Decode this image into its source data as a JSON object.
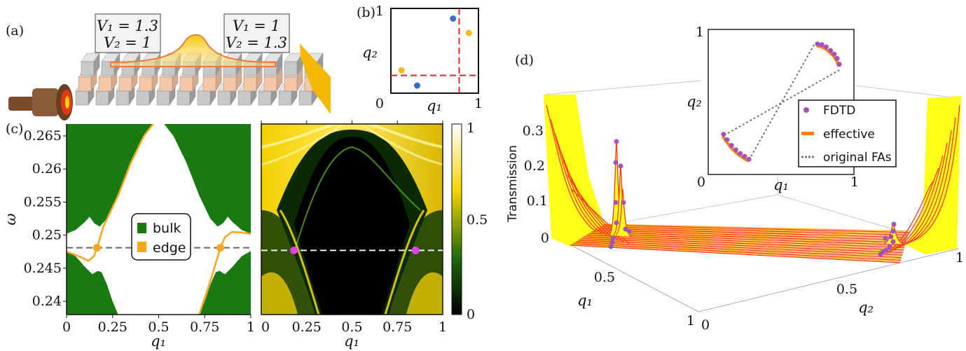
{
  "panel_labels": {
    "a": "(a)",
    "b": "(b)",
    "c": "(c)",
    "d": "(d)"
  },
  "panel_a": {
    "box_left": {
      "line1": "V₁ = 1.3",
      "line2": "V₂ = 1"
    },
    "box_right": {
      "line1": "V₁ = 1",
      "line2": "V₂ = 1.3"
    },
    "colors": {
      "rod": "#c8c8c8",
      "rod_mid": "#f5c7a9",
      "beam": "#f7c600",
      "beam_edge": "#f07a3a"
    }
  },
  "chart_data": [
    {
      "panel": "(b)",
      "type": "scatter",
      "xlabel": "q₁",
      "ylabel": "q₂",
      "xlim": [
        0,
        1
      ],
      "ylim": [
        0,
        1
      ],
      "xticks": [
        "0",
        "1"
      ],
      "yticks": [
        "0",
        "1"
      ],
      "series": [
        {
          "color": "#3a6cc8",
          "points": [
            [
              0.71,
              0.88
            ],
            [
              0.3,
              0.09
            ]
          ]
        },
        {
          "color": "#f5b91c",
          "points": [
            [
              0.89,
              0.71
            ],
            [
              0.12,
              0.27
            ]
          ]
        }
      ],
      "reference_lines": {
        "color": "#e8202a",
        "q1": 0.78,
        "q2": 0.21
      }
    },
    {
      "panel": "(c) left",
      "type": "area",
      "xlabel": "q₁",
      "ylabel": "ω",
      "xlim": [
        0,
        1
      ],
      "ylim": [
        0.238,
        0.2668
      ],
      "xticks": [
        "0",
        "0.25",
        "0.5",
        "0.75",
        "1"
      ],
      "yticks": [
        "0.24",
        "0.245",
        "0.25",
        "0.255",
        "0.26",
        "0.265"
      ],
      "legend": {
        "position": "center",
        "entries": [
          {
            "name": "bulk",
            "color": "#1a7a12"
          },
          {
            "name": "edge",
            "color": "#f9a41c"
          }
        ]
      },
      "bulk_upper_boundary": [
        [
          0,
          0.2502
        ],
        [
          0.05,
          0.2508
        ],
        [
          0.1,
          0.252
        ],
        [
          0.125,
          0.2528
        ],
        [
          0.15,
          0.2518
        ],
        [
          0.18,
          0.2513
        ],
        [
          0.22,
          0.2525
        ],
        [
          0.28,
          0.256
        ],
        [
          0.35,
          0.261
        ],
        [
          0.42,
          0.265
        ],
        [
          0.47,
          0.2668
        ],
        [
          0.53,
          0.2668
        ],
        [
          0.58,
          0.265
        ],
        [
          0.65,
          0.261
        ],
        [
          0.72,
          0.256
        ],
        [
          0.78,
          0.2525
        ],
        [
          0.82,
          0.2513
        ],
        [
          0.85,
          0.2518
        ],
        [
          0.875,
          0.2528
        ],
        [
          0.9,
          0.252
        ],
        [
          0.95,
          0.2508
        ],
        [
          1,
          0.2502
        ]
      ],
      "bulk_lower_left_boundary": [
        [
          0,
          0.2476
        ],
        [
          0.05,
          0.2468
        ],
        [
          0.1,
          0.2452
        ],
        [
          0.14,
          0.2441
        ],
        [
          0.17,
          0.2446
        ],
        [
          0.19,
          0.2444
        ],
        [
          0.22,
          0.2425
        ],
        [
          0.25,
          0.24
        ],
        [
          0.28,
          0.238
        ]
      ],
      "bulk_lower_right_boundary": [
        [
          0.72,
          0.238
        ],
        [
          0.75,
          0.24
        ],
        [
          0.78,
          0.2425
        ],
        [
          0.81,
          0.2444
        ],
        [
          0.83,
          0.2446
        ],
        [
          0.86,
          0.2441
        ],
        [
          0.9,
          0.2452
        ],
        [
          0.95,
          0.2468
        ],
        [
          1,
          0.2476
        ]
      ],
      "edge_left": [
        [
          0,
          0.2475
        ],
        [
          0.06,
          0.2469
        ],
        [
          0.12,
          0.2461
        ],
        [
          0.15,
          0.2469
        ],
        [
          0.165,
          0.2481
        ],
        [
          0.2,
          0.2513
        ],
        [
          0.28,
          0.256
        ],
        [
          0.35,
          0.261
        ],
        [
          0.42,
          0.265
        ],
        [
          0.47,
          0.2668
        ]
      ],
      "edge_right": [
        [
          0.72,
          0.238
        ],
        [
          0.78,
          0.243
        ],
        [
          0.835,
          0.2481
        ],
        [
          0.86,
          0.2497
        ],
        [
          0.9,
          0.2505
        ],
        [
          0.95,
          0.2504
        ],
        [
          1,
          0.2502
        ]
      ],
      "markers": [
        [
          0.165,
          0.2481
        ],
        [
          0.835,
          0.2481
        ]
      ],
      "dashed_line_omega": 0.2481
    },
    {
      "panel": "(c) right",
      "type": "heatmap",
      "xlabel": "q₁",
      "xlim": [
        0,
        1
      ],
      "ylim": [
        0.238,
        0.2668
      ],
      "xticks": [
        "0",
        "0.25",
        "0.5",
        "0.75",
        "1"
      ],
      "colorbar": {
        "range": [
          0,
          1
        ],
        "ticks": [
          "0",
          "0.5",
          "1"
        ],
        "colors": [
          "#000000",
          "#1f6b0a",
          "#f5d400",
          "#ffffff"
        ]
      },
      "markers": [
        [
          0.18,
          0.2477
        ],
        [
          0.85,
          0.2477
        ]
      ],
      "marker_color": "#e040e8",
      "dashed_line_omega": 0.2477
    },
    {
      "panel": "(d)",
      "type": "line",
      "zlabel": "Transmission",
      "xlabel": "q₁",
      "ylabel": "q₂",
      "zticks": [
        "0",
        "0.1",
        "0.2",
        "0.3"
      ],
      "xticks": [
        "0.5",
        "1"
      ],
      "yticks": [
        "0",
        "0.5",
        "1"
      ],
      "colors": {
        "surface": "#ffff1a",
        "lines": "#ff3a1a",
        "fdtd": "#a352b8"
      }
    },
    {
      "panel": "(d) inset",
      "type": "scatter",
      "xlabel": "q₁",
      "ylabel": "q₂",
      "xlim": [
        0,
        1
      ],
      "ylim": [
        0,
        1
      ],
      "xticks": [
        "0",
        "1"
      ],
      "yticks": [
        "1"
      ],
      "legend": {
        "position": "right",
        "entries": [
          {
            "name": "FDTD",
            "color": "#a352b8"
          },
          {
            "name": "effective",
            "color": "#ff7f0e"
          },
          {
            "name": "original FAs",
            "color": "#777777"
          }
        ]
      },
      "fdtd_upper": [
        [
          0.75,
          0.9
        ],
        [
          0.78,
          0.895
        ],
        [
          0.81,
          0.88
        ],
        [
          0.84,
          0.855
        ],
        [
          0.865,
          0.83
        ],
        [
          0.885,
          0.8
        ],
        [
          0.9,
          0.76
        ]
      ],
      "fdtd_lower": [
        [
          0.105,
          0.277
        ],
        [
          0.13,
          0.24
        ],
        [
          0.16,
          0.2
        ],
        [
          0.19,
          0.17
        ],
        [
          0.22,
          0.145
        ],
        [
          0.25,
          0.125
        ],
        [
          0.28,
          0.105
        ]
      ],
      "original_FAs": [
        [
          [
            0.11,
            0.27
          ],
          [
            0.9,
            0.72
          ]
        ],
        [
          [
            0.28,
            0.1
          ],
          [
            0.73,
            0.9
          ]
        ]
      ]
    }
  ]
}
